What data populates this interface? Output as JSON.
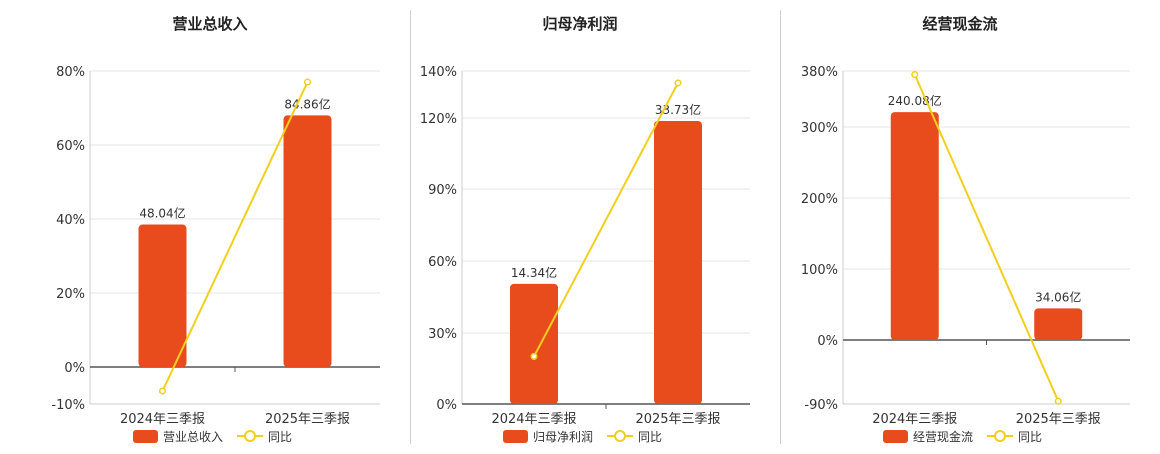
{
  "chart_data": [
    {
      "type": "bar",
      "title": "营业总收入",
      "categories": [
        "2024年三季报",
        "2025年三季报"
      ],
      "yticks": [
        "80%",
        "60%",
        "40%",
        "20%",
        "0%",
        "-10%"
      ],
      "ylim": [
        -10,
        80
      ],
      "series": [
        {
          "name": "营业总收入",
          "kind": "bar",
          "values": [
            38.5,
            68.0
          ],
          "labels": [
            "48.04亿",
            "84.86亿"
          ],
          "color": "#e84c1c"
        },
        {
          "name": "同比",
          "kind": "line",
          "values": [
            -6.5,
            77.0
          ],
          "color": "#f2cf1f"
        }
      ],
      "legend": "bottom-center",
      "grid": true
    },
    {
      "type": "bar",
      "title": "归母净利润",
      "categories": [
        "2024年三季报",
        "2025年三季报"
      ],
      "yticks": [
        "140%",
        "120%",
        "90%",
        "60%",
        "30%",
        "0%"
      ],
      "ylim": [
        0,
        140
      ],
      "series": [
        {
          "name": "归母净利润",
          "kind": "bar",
          "values": [
            50.5,
            119.0
          ],
          "labels": [
            "14.34亿",
            "33.73亿"
          ],
          "color": "#e84c1c"
        },
        {
          "name": "同比",
          "kind": "line",
          "values": [
            20.0,
            135.0
          ],
          "color": "#f2cf1f"
        }
      ],
      "legend": "bottom-center",
      "grid": true
    },
    {
      "type": "bar",
      "title": "经营现金流",
      "categories": [
        "2024年三季报",
        "2025年三季报"
      ],
      "yticks": [
        "380%",
        "300%",
        "200%",
        "100%",
        "0%",
        "-90%"
      ],
      "ylim": [
        -90,
        380
      ],
      "series": [
        {
          "name": "经营现金流",
          "kind": "bar",
          "values": [
            322.0,
            45.0
          ],
          "labels": [
            "240.08亿",
            "34.06亿"
          ],
          "color": "#e84c1c"
        },
        {
          "name": "同比",
          "kind": "line",
          "values": [
            375.0,
            -86.0
          ],
          "color": "#f2cf1f"
        }
      ],
      "legend": "bottom-center",
      "grid": true
    }
  ]
}
